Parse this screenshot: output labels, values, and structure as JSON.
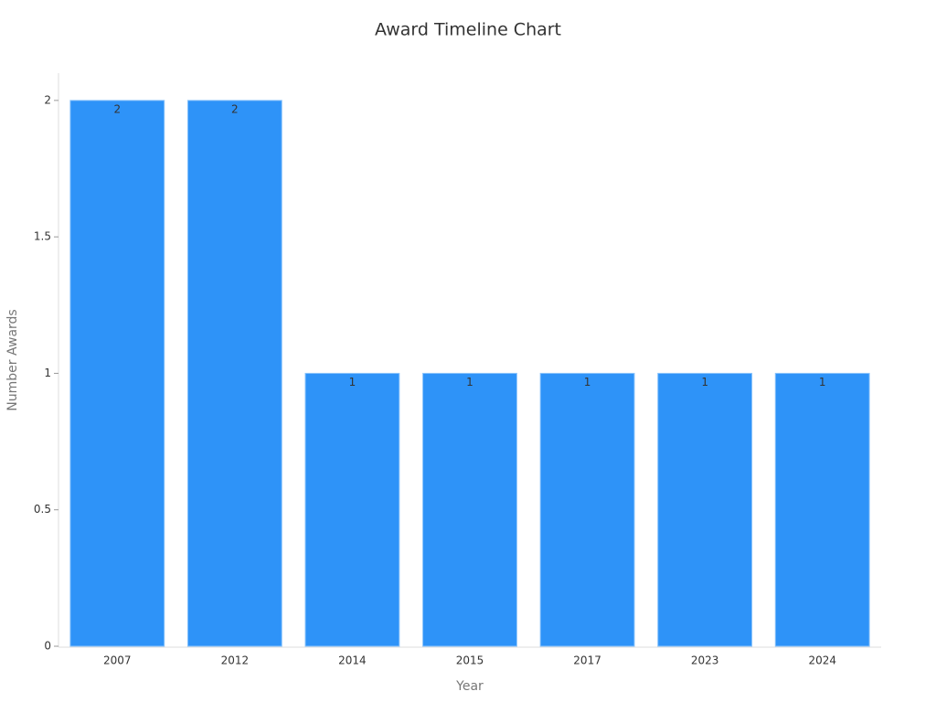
{
  "chart_data": {
    "type": "bar",
    "title": "Award Timeline Chart",
    "x_label": "Year",
    "y_label": "Number Awards",
    "categories": [
      "2007",
      "2012",
      "2014",
      "2015",
      "2017",
      "2023",
      "2024"
    ],
    "values": [
      2,
      2,
      1,
      1,
      1,
      1,
      1
    ],
    "color": "#2e93f8",
    "ylim": [
      0,
      2.1
    ],
    "yticks": [
      0,
      0.5,
      1,
      1.5,
      2
    ],
    "grid": false
  }
}
